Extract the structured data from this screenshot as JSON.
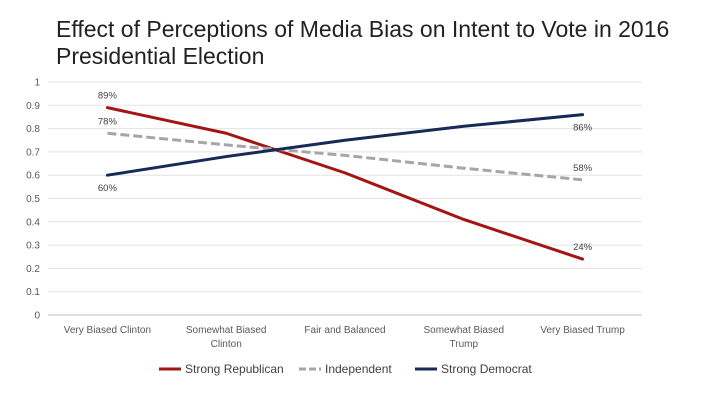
{
  "chart_data": {
    "type": "line",
    "title": "Effect of Perceptions of Media Bias on Intent to Vote in 2016 Presidential Election",
    "categories": [
      [
        "Very Biased Clinton"
      ],
      [
        "Somewhat Biased",
        "Clinton"
      ],
      [
        "Fair and Balanced"
      ],
      [
        "Somewhat Biased",
        "Trump"
      ],
      [
        "Very Biased Trump"
      ]
    ],
    "ylim": [
      0,
      1
    ],
    "yticks": [
      "0",
      "0.1",
      "0.2",
      "0.3",
      "0.4",
      "0.5",
      "0.6",
      "0.7",
      "0.8",
      "0.9",
      "1"
    ],
    "grid": true,
    "legend_position": "bottom",
    "series": [
      {
        "name": "Strong Republican",
        "color": "#a31515",
        "style": "solid",
        "values": [
          0.89,
          0.78,
          0.61,
          0.41,
          0.24
        ],
        "labels": [
          {
            "index": 0,
            "text": "89%",
            "position": "above"
          },
          {
            "index": 4,
            "text": "24%",
            "position": "above"
          }
        ]
      },
      {
        "name": "Independent",
        "color": "#a6a6a6",
        "style": "dashed",
        "values": [
          0.78,
          0.73,
          0.685,
          0.63,
          0.58
        ],
        "labels": [
          {
            "index": 0,
            "text": "78%",
            "position": "above"
          },
          {
            "index": 4,
            "text": "58%",
            "position": "above"
          }
        ]
      },
      {
        "name": "Strong Democrat",
        "color": "#172a55",
        "style": "solid",
        "values": [
          0.6,
          0.68,
          0.75,
          0.81,
          0.86
        ],
        "labels": [
          {
            "index": 0,
            "text": "60%",
            "position": "below"
          },
          {
            "index": 4,
            "text": "86%",
            "position": "below"
          }
        ]
      }
    ]
  }
}
